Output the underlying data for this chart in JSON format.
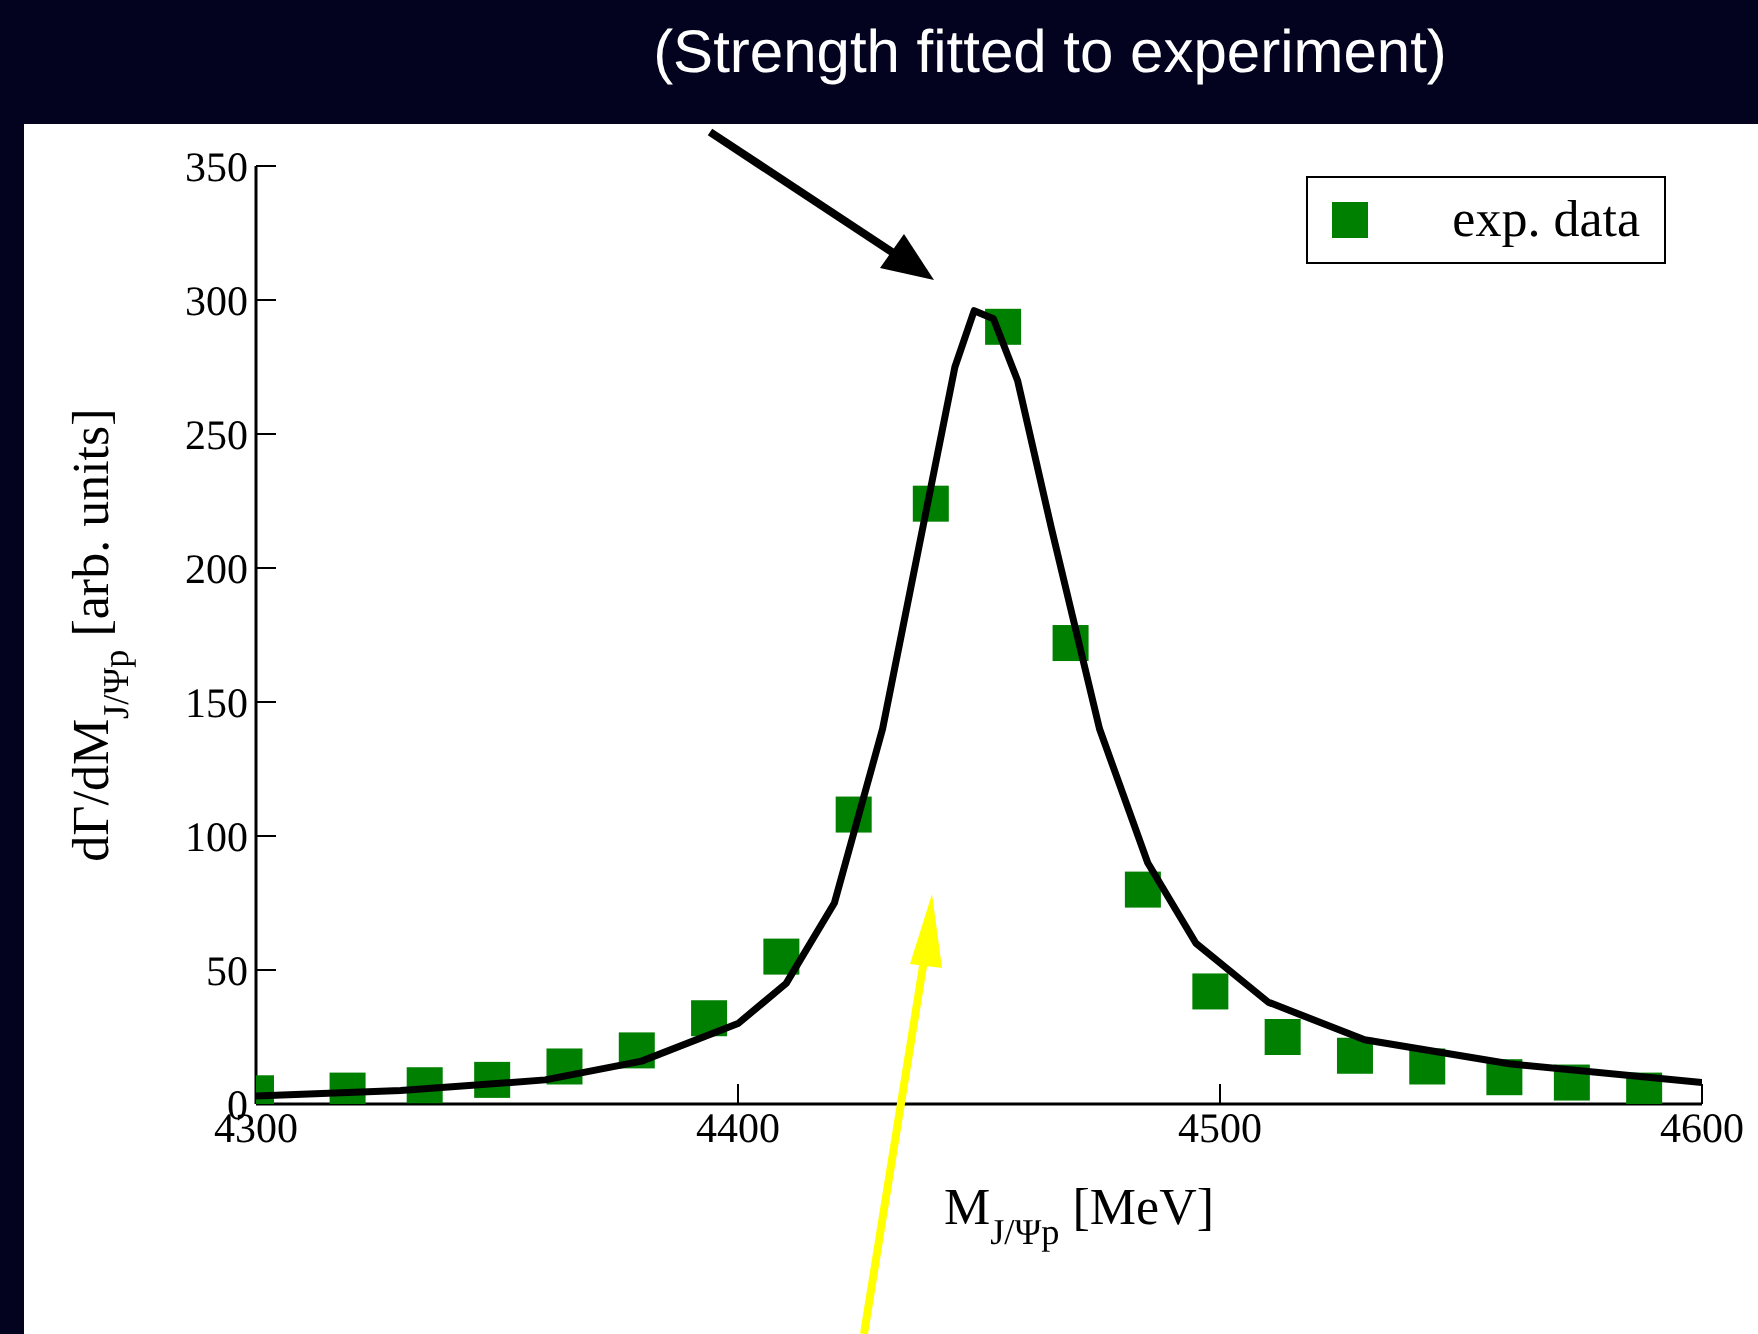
{
  "chart_data": {
    "type": "scatter",
    "title": "(Strength fitted to experiment)",
    "xlabel": "M$_{J/Ψp}$ [MeV]",
    "ylabel": "dΓ/dM$_{J/Ψp}$ [arb. units]",
    "xlim": [
      4300,
      4600
    ],
    "xticks": [
      4300,
      4400,
      4500,
      4600
    ],
    "ylim": [
      0,
      350
    ],
    "yticks": [
      0,
      50,
      100,
      150,
      200,
      250,
      300,
      350
    ],
    "grid": false,
    "legend": "top right",
    "series": [
      {
        "type": "scatter",
        "name": "exp. data",
        "color": "#008000",
        "marker": "square",
        "x": [
          4300,
          4319,
          4335,
          4349,
          4364,
          4379,
          4394,
          4409,
          4424,
          4440,
          4455,
          4469,
          4484,
          4498,
          4513,
          4528,
          4543,
          4559,
          4573,
          4588
        ],
        "values": [
          4,
          5,
          7,
          9,
          14,
          20,
          32,
          55,
          108,
          224,
          290,
          172,
          80,
          42,
          25,
          18,
          14,
          10,
          8,
          5
        ]
      },
      {
        "type": "line",
        "color": "#000000",
        "marker": "none",
        "line_style": "solid",
        "x": [
          4300,
          4330,
          4360,
          4380,
          4400,
          4410,
          4420,
          4430,
          4440,
          4445,
          4449,
          4453,
          4458,
          4465,
          4475,
          4485,
          4495,
          4510,
          4530,
          4560,
          4600
        ],
        "values": [
          3,
          5,
          9,
          16,
          30,
          45,
          75,
          140,
          230,
          275,
          296,
          293,
          270,
          215,
          140,
          90,
          60,
          38,
          24,
          15,
          8
        ]
      }
    ]
  }
}
